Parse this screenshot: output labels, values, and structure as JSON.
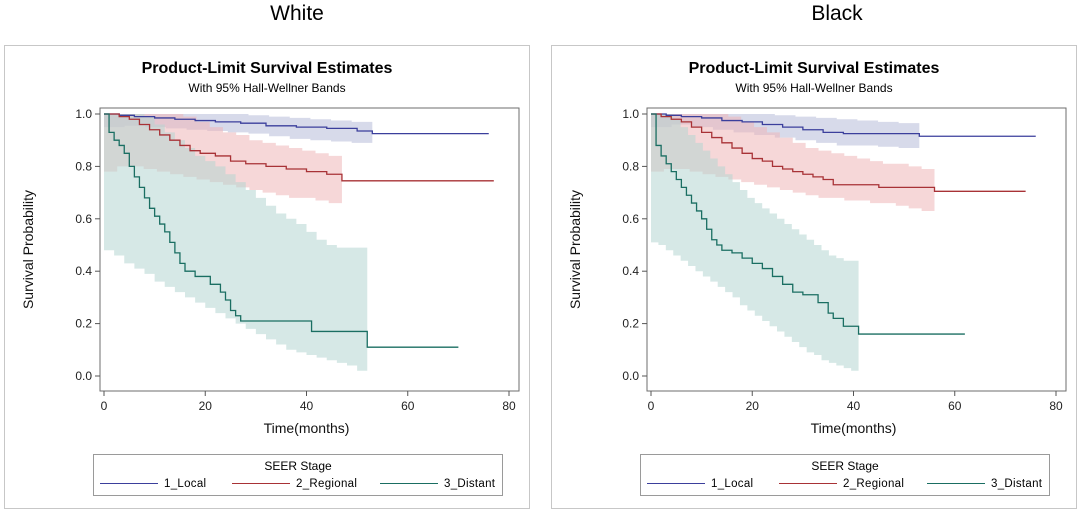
{
  "groups": [
    {
      "title": "White"
    },
    {
      "title": "Black"
    }
  ],
  "chart_data": [
    {
      "type": "line",
      "step": true,
      "group": "White",
      "title": "Product-Limit Survival Estimates",
      "subtitle": "With 95% Hall-Wellner Bands",
      "xlabel": "Time(months)",
      "ylabel": "Survival Probability",
      "xlim": [
        0,
        80
      ],
      "ylim": [
        0,
        1
      ],
      "xticks": [
        "0",
        "20",
        "40",
        "60",
        "80"
      ],
      "yticks": [
        "0.0",
        "0.2",
        "0.4",
        "0.6",
        "0.8",
        "1.0"
      ],
      "xtick_values": [
        0,
        20,
        40,
        60,
        80
      ],
      "ytick_values": [
        0,
        0.2,
        0.4,
        0.6,
        0.8,
        1.0
      ],
      "legend_title": "SEER Stage",
      "series": [
        {
          "name": "1_Local",
          "color": "#3b3f9c",
          "band_color": "#b7bbd9",
          "x": [
            0,
            3,
            6,
            10,
            14,
            18,
            22,
            27,
            32,
            38,
            44,
            50,
            53,
            76
          ],
          "y": [
            1.0,
            0.995,
            0.99,
            0.985,
            0.98,
            0.975,
            0.97,
            0.965,
            0.955,
            0.95,
            0.945,
            0.935,
            0.925,
            0.925
          ],
          "band_x": [
            0,
            53
          ],
          "band_lower": [
            0.95,
            0.955,
            0.95,
            0.945,
            0.94,
            0.935,
            0.93,
            0.925,
            0.915,
            0.905,
            0.9,
            0.895,
            0.89,
            0.89
          ],
          "band_upper": [
            1.0,
            1.0,
            1.0,
            1.0,
            1.0,
            1.0,
            1.0,
            0.995,
            0.99,
            0.985,
            0.98,
            0.975,
            0.97,
            0.97
          ]
        },
        {
          "name": "2_Regional",
          "color": "#a83236",
          "band_color": "#efb6b8",
          "x": [
            0,
            3,
            5,
            7,
            9,
            11,
            13,
            15,
            17,
            19,
            22,
            25,
            28,
            32,
            36,
            40,
            44,
            47,
            77
          ],
          "y": [
            1.0,
            0.99,
            0.98,
            0.96,
            0.94,
            0.92,
            0.9,
            0.88,
            0.86,
            0.85,
            0.84,
            0.82,
            0.81,
            0.8,
            0.79,
            0.78,
            0.77,
            0.745,
            0.745
          ],
          "band_x": [
            0,
            47
          ],
          "band_lower": [
            0.78,
            0.8,
            0.8,
            0.79,
            0.78,
            0.77,
            0.76,
            0.75,
            0.74,
            0.73,
            0.72,
            0.71,
            0.7,
            0.69,
            0.68,
            0.68,
            0.67,
            0.66,
            0.66
          ],
          "band_upper": [
            1.0,
            1.0,
            1.0,
            1.0,
            1.0,
            1.0,
            0.99,
            0.97,
            0.95,
            0.93,
            0.92,
            0.9,
            0.89,
            0.88,
            0.87,
            0.86,
            0.85,
            0.84,
            0.84
          ]
        },
        {
          "name": "3_Distant",
          "color": "#1a6e62",
          "band_color": "#b4d6d1",
          "x": [
            0,
            1,
            2,
            3,
            4,
            5,
            6,
            7,
            8,
            9,
            10,
            11,
            12,
            13,
            14,
            15,
            16,
            18,
            21,
            23,
            24,
            25,
            26,
            27,
            41,
            52,
            70
          ],
          "y": [
            1.0,
            0.93,
            0.9,
            0.88,
            0.85,
            0.8,
            0.76,
            0.72,
            0.68,
            0.64,
            0.61,
            0.58,
            0.55,
            0.51,
            0.47,
            0.43,
            0.4,
            0.38,
            0.35,
            0.32,
            0.29,
            0.25,
            0.23,
            0.21,
            0.17,
            0.11,
            0.11
          ],
          "band_x": [
            0,
            52
          ],
          "band_lower": [
            0.48,
            0.46,
            0.43,
            0.41,
            0.39,
            0.36,
            0.34,
            0.32,
            0.3,
            0.28,
            0.26,
            0.24,
            0.22,
            0.2,
            0.18,
            0.16,
            0.14,
            0.12,
            0.1,
            0.09,
            0.08,
            0.07,
            0.06,
            0.05,
            0.04,
            0.02,
            0.02
          ],
          "band_upper": [
            1.0,
            1.0,
            1.0,
            1.0,
            0.99,
            0.96,
            0.93,
            0.9,
            0.87,
            0.84,
            0.82,
            0.8,
            0.77,
            0.74,
            0.71,
            0.68,
            0.65,
            0.62,
            0.6,
            0.58,
            0.55,
            0.52,
            0.5,
            0.49,
            0.49,
            0.49,
            0.49
          ]
        }
      ]
    },
    {
      "type": "line",
      "step": true,
      "group": "Black",
      "title": "Product-Limit Survival Estimates",
      "subtitle": "With 95% Hall-Wellner Bands",
      "xlabel": "Time(months)",
      "ylabel": "Survival Probability",
      "xlim": [
        0,
        80
      ],
      "ylim": [
        0,
        1
      ],
      "xticks": [
        "0",
        "20",
        "40",
        "60",
        "80"
      ],
      "yticks": [
        "0.0",
        "0.2",
        "0.4",
        "0.6",
        "0.8",
        "1.0"
      ],
      "xtick_values": [
        0,
        20,
        40,
        60,
        80
      ],
      "ytick_values": [
        0,
        0.2,
        0.4,
        0.6,
        0.8,
        1.0
      ],
      "legend_title": "SEER Stage",
      "series": [
        {
          "name": "1_Local",
          "color": "#3b3f9c",
          "band_color": "#b7bbd9",
          "x": [
            0,
            3,
            6,
            10,
            14,
            18,
            22,
            26,
            30,
            34,
            38,
            45,
            53,
            76
          ],
          "y": [
            1.0,
            0.995,
            0.99,
            0.985,
            0.975,
            0.97,
            0.96,
            0.95,
            0.94,
            0.93,
            0.925,
            0.925,
            0.915,
            0.915
          ],
          "band_x": [
            0,
            53
          ],
          "band_lower": [
            0.95,
            0.96,
            0.95,
            0.94,
            0.93,
            0.92,
            0.91,
            0.9,
            0.89,
            0.88,
            0.88,
            0.875,
            0.87,
            0.87
          ],
          "band_upper": [
            1.0,
            1.0,
            1.0,
            1.0,
            1.0,
            1.0,
            0.995,
            0.99,
            0.985,
            0.98,
            0.975,
            0.97,
            0.965,
            0.965
          ]
        },
        {
          "name": "2_Regional",
          "color": "#a83236",
          "band_color": "#efb6b8",
          "x": [
            0,
            2,
            4,
            6,
            8,
            10,
            12,
            14,
            16,
            18,
            20,
            22,
            24,
            26,
            28,
            30,
            32,
            34,
            36,
            40,
            45,
            56,
            74
          ],
          "y": [
            1.0,
            0.99,
            0.98,
            0.97,
            0.95,
            0.93,
            0.91,
            0.89,
            0.87,
            0.85,
            0.83,
            0.82,
            0.8,
            0.79,
            0.78,
            0.77,
            0.76,
            0.75,
            0.73,
            0.73,
            0.72,
            0.705,
            0.705
          ],
          "band_x": [
            0,
            56
          ],
          "band_lower": [
            0.78,
            0.79,
            0.79,
            0.78,
            0.77,
            0.76,
            0.75,
            0.74,
            0.73,
            0.72,
            0.71,
            0.7,
            0.69,
            0.68,
            0.68,
            0.67,
            0.67,
            0.66,
            0.66,
            0.65,
            0.64,
            0.63,
            0.63
          ],
          "band_upper": [
            1.0,
            1.0,
            1.0,
            1.0,
            1.0,
            1.0,
            0.99,
            0.97,
            0.95,
            0.93,
            0.91,
            0.89,
            0.87,
            0.86,
            0.85,
            0.84,
            0.83,
            0.82,
            0.81,
            0.81,
            0.8,
            0.79,
            0.79
          ]
        },
        {
          "name": "3_Distant",
          "color": "#1a6e62",
          "band_color": "#b4d6d1",
          "x": [
            0,
            1,
            2,
            3,
            4,
            5,
            6,
            7,
            8,
            9,
            10,
            11,
            12,
            13,
            14,
            16,
            18,
            20,
            22,
            24,
            26,
            28,
            30,
            33,
            35,
            36,
            38,
            41,
            62
          ],
          "y": [
            1.0,
            0.88,
            0.84,
            0.81,
            0.78,
            0.75,
            0.72,
            0.69,
            0.66,
            0.63,
            0.6,
            0.56,
            0.52,
            0.5,
            0.48,
            0.47,
            0.45,
            0.43,
            0.41,
            0.38,
            0.35,
            0.32,
            0.31,
            0.28,
            0.24,
            0.22,
            0.19,
            0.16,
            0.16
          ],
          "band_x": [
            0,
            41
          ],
          "band_lower": [
            0.51,
            0.5,
            0.48,
            0.46,
            0.44,
            0.42,
            0.4,
            0.38,
            0.36,
            0.34,
            0.32,
            0.3,
            0.27,
            0.25,
            0.23,
            0.21,
            0.19,
            0.17,
            0.15,
            0.13,
            0.11,
            0.09,
            0.08,
            0.06,
            0.05,
            0.04,
            0.03,
            0.02,
            0.02
          ],
          "band_upper": [
            1.0,
            1.0,
            1.0,
            0.98,
            0.95,
            0.92,
            0.89,
            0.86,
            0.83,
            0.8,
            0.77,
            0.74,
            0.71,
            0.68,
            0.66,
            0.64,
            0.62,
            0.6,
            0.58,
            0.56,
            0.54,
            0.52,
            0.5,
            0.48,
            0.46,
            0.45,
            0.44,
            0.44,
            0.44
          ]
        }
      ]
    }
  ]
}
